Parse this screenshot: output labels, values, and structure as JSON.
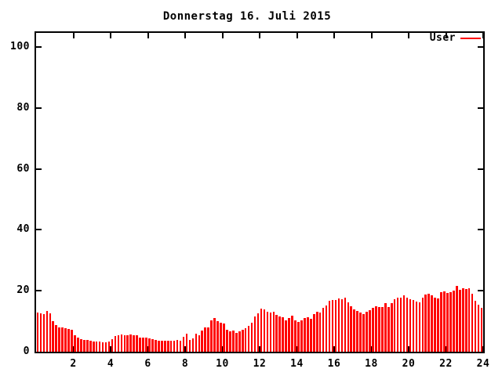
{
  "title": "Donnerstag 16. Juli 2015",
  "legend": {
    "label": "User",
    "color": "#ff0000",
    "position": "top-right-inside"
  },
  "colors": {
    "background": "#ffffff",
    "axis": "#000000",
    "bar": "#ff0000"
  },
  "chart_data": {
    "type": "bar",
    "title": "Donnerstag 16. Juli 2015",
    "xlabel": "",
    "ylabel": "",
    "x_unit": "hour of day",
    "sample_interval_minutes": 10,
    "xlim": [
      0,
      24
    ],
    "ylim": [
      0,
      105
    ],
    "x_ticks": [
      2,
      4,
      6,
      8,
      10,
      12,
      14,
      16,
      18,
      20,
      22,
      24
    ],
    "y_ticks": [
      0,
      20,
      40,
      60,
      80,
      100
    ],
    "grid": false,
    "legend_position": "top-right",
    "series": [
      {
        "name": "User",
        "color": "#ff0000",
        "values": [
          12.9,
          12.6,
          12.3,
          13.5,
          12.6,
          10.1,
          8.7,
          8.1,
          8.1,
          7.8,
          7.5,
          7.1,
          5.4,
          4.7,
          4.2,
          3.9,
          3.9,
          3.6,
          3.4,
          3.4,
          3.4,
          3.2,
          3.2,
          3.4,
          4.1,
          5.2,
          5.5,
          5.7,
          5.5,
          5.5,
          5.7,
          5.5,
          5.3,
          4.7,
          4.7,
          4.7,
          4.4,
          4.1,
          3.9,
          3.7,
          3.7,
          3.7,
          3.7,
          3.7,
          3.7,
          3.9,
          3.7,
          5.0,
          6.0,
          3.9,
          4.5,
          5.9,
          5.4,
          7.0,
          7.9,
          8.1,
          10.3,
          11.0,
          10.0,
          9.5,
          9.3,
          7.1,
          6.7,
          6.9,
          6.3,
          6.6,
          7.3,
          7.8,
          8.4,
          9.5,
          11.5,
          12.5,
          14.2,
          13.8,
          13.0,
          12.8,
          13.1,
          12.2,
          11.7,
          11.2,
          10.4,
          11.0,
          11.8,
          10.4,
          9.8,
          10.3,
          11.0,
          11.3,
          10.8,
          12.3,
          13.1,
          12.8,
          14.5,
          15.3,
          16.6,
          17.0,
          17.0,
          17.4,
          17.2,
          17.8,
          16.3,
          15.0,
          14.0,
          13.4,
          12.9,
          12.4,
          13.1,
          13.7,
          14.5,
          15.0,
          14.7,
          14.7,
          15.9,
          14.6,
          16.0,
          17.3,
          17.8,
          17.7,
          18.5,
          17.8,
          17.3,
          17.0,
          16.4,
          16.2,
          17.7,
          18.8,
          19.0,
          18.4,
          17.8,
          17.5,
          19.6,
          19.9,
          19.3,
          19.6,
          20.0,
          21.7,
          20.3,
          20.8,
          20.7,
          20.8,
          19.0,
          16.6,
          15.4,
          14.3
        ]
      }
    ]
  }
}
